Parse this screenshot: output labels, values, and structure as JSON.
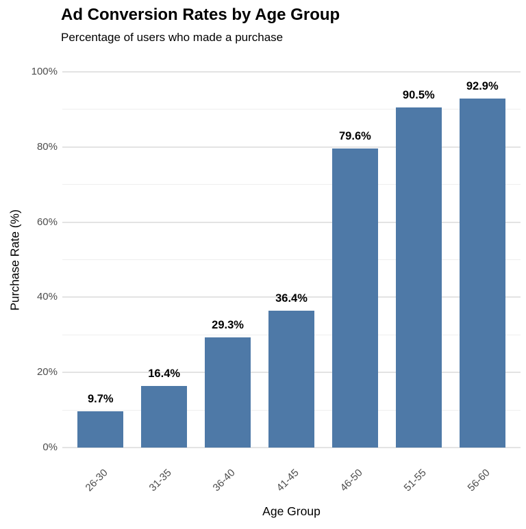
{
  "chart_data": {
    "type": "bar",
    "title": "Ad Conversion Rates by Age Group",
    "subtitle": "Percentage of users who made a purchase",
    "xlabel": "Age Group",
    "ylabel": "Purchase Rate (%)",
    "categories": [
      "26-30",
      "31-35",
      "36-40",
      "41-45",
      "46-50",
      "51-55",
      "56-60"
    ],
    "values": [
      9.7,
      16.4,
      29.3,
      36.4,
      79.6,
      90.5,
      92.9
    ],
    "value_labels": [
      "9.7%",
      "16.4%",
      "29.3%",
      "36.4%",
      "79.6%",
      "90.5%",
      "92.9%"
    ],
    "ylim": [
      0,
      100
    ],
    "yticks_major": [
      0,
      20,
      40,
      60,
      80,
      100
    ],
    "ytick_labels": [
      "0%",
      "20%",
      "40%",
      "60%",
      "80%",
      "100%"
    ],
    "yticks_minor": [
      10,
      30,
      50,
      70,
      90
    ],
    "grid": "horizontal major and minor lines",
    "legend_position": "none",
    "colors": {
      "bar": "#4E79A7",
      "grid_major": "#e3e3e3",
      "grid_minor": "#eeeeee",
      "tick_label": "#4d4d4d",
      "text": "#000000",
      "background": "#ffffff"
    }
  }
}
